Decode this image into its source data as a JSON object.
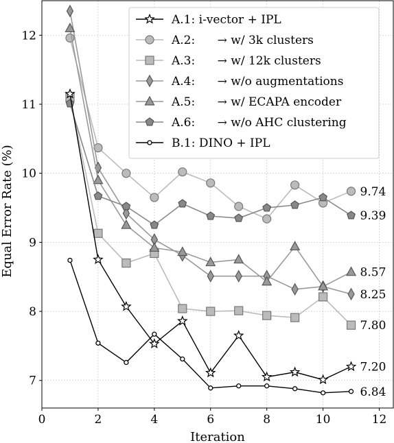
{
  "chart_data": {
    "type": "line",
    "xlabel": "Iteration",
    "ylabel": "Equal Error Rate (%)",
    "xlim": [
      0,
      12.5
    ],
    "ylim": [
      6.6,
      12.5
    ],
    "xticks": [
      0,
      2,
      4,
      6,
      8,
      10,
      12
    ],
    "yticks": [
      7,
      8,
      9,
      10,
      11,
      12
    ],
    "xtick_labels": [
      "0",
      "2",
      "4",
      "6",
      "8",
      "10",
      "12"
    ],
    "ytick_labels": [
      "7",
      "8",
      "9",
      "10",
      "11",
      "12"
    ],
    "grid": true,
    "legend_position": "top-right",
    "series": [
      {
        "name": "A.1: i-vector + IPL",
        "color": "#111111",
        "marker": "star",
        "x": [
          1,
          2,
          3,
          4,
          5,
          6,
          7,
          8,
          9,
          10,
          11
        ],
        "y": [
          11.15,
          8.75,
          8.07,
          7.53,
          7.86,
          7.11,
          7.65,
          7.05,
          7.12,
          7.01,
          7.2
        ],
        "end_label": "7.20"
      },
      {
        "name": "A.2:      → w/ 3k clusters",
        "color": "#bbbbbb",
        "marker": "circle",
        "x": [
          1,
          2,
          3,
          4,
          5,
          6,
          7,
          8,
          9,
          10,
          11
        ],
        "y": [
          11.96,
          10.37,
          10.0,
          9.65,
          10.02,
          9.86,
          9.52,
          9.34,
          9.83,
          9.57,
          9.74
        ],
        "end_label": "9.74"
      },
      {
        "name": "A.3:      → w/ 12k clusters",
        "color": "#bbbbbb",
        "marker": "square",
        "x": [
          1,
          2,
          3,
          4,
          5,
          6,
          7,
          8,
          9,
          10,
          11
        ],
        "y": [
          11.1,
          9.13,
          8.7,
          8.84,
          8.04,
          8.0,
          8.01,
          7.94,
          7.91,
          8.21,
          7.8
        ],
        "end_label": "7.80"
      },
      {
        "name": "A.4:      → w/o augmentations",
        "color": "#999999",
        "marker": "thin_diamond",
        "x": [
          1,
          2,
          3,
          4,
          5,
          6,
          7,
          8,
          9,
          10,
          11
        ],
        "y": [
          12.35,
          10.08,
          9.42,
          9.04,
          8.81,
          8.51,
          8.51,
          8.51,
          8.32,
          8.36,
          8.25
        ],
        "end_label": "8.25"
      },
      {
        "name": "A.5:      → w/ ECAPA encoder",
        "color": "#999999",
        "marker": "triangle",
        "x": [
          1,
          2,
          3,
          4,
          5,
          6,
          7,
          8,
          9,
          10,
          11
        ],
        "y": [
          12.1,
          9.9,
          9.25,
          8.92,
          8.86,
          8.71,
          8.75,
          8.43,
          8.94,
          8.36,
          8.57
        ],
        "end_label": "8.57"
      },
      {
        "name": "A.6:      → w/o AHC clustering",
        "color": "#888888",
        "marker": "pentagon",
        "x": [
          1,
          2,
          3,
          4,
          5,
          6,
          7,
          8,
          9,
          10,
          11
        ],
        "y": [
          11.01,
          9.67,
          9.52,
          9.25,
          9.56,
          9.38,
          9.35,
          9.5,
          9.54,
          9.65,
          9.39
        ],
        "end_label": "9.39"
      },
      {
        "name": "B.1: DINO + IPL",
        "color": "#000000",
        "marker": "small_circle",
        "x": [
          1,
          2,
          3,
          4,
          5,
          6,
          7,
          8,
          9,
          10,
          11
        ],
        "y": [
          8.74,
          7.54,
          7.26,
          7.67,
          7.31,
          6.89,
          6.92,
          6.92,
          6.88,
          6.82,
          6.84
        ],
        "end_label": "6.84"
      }
    ]
  }
}
